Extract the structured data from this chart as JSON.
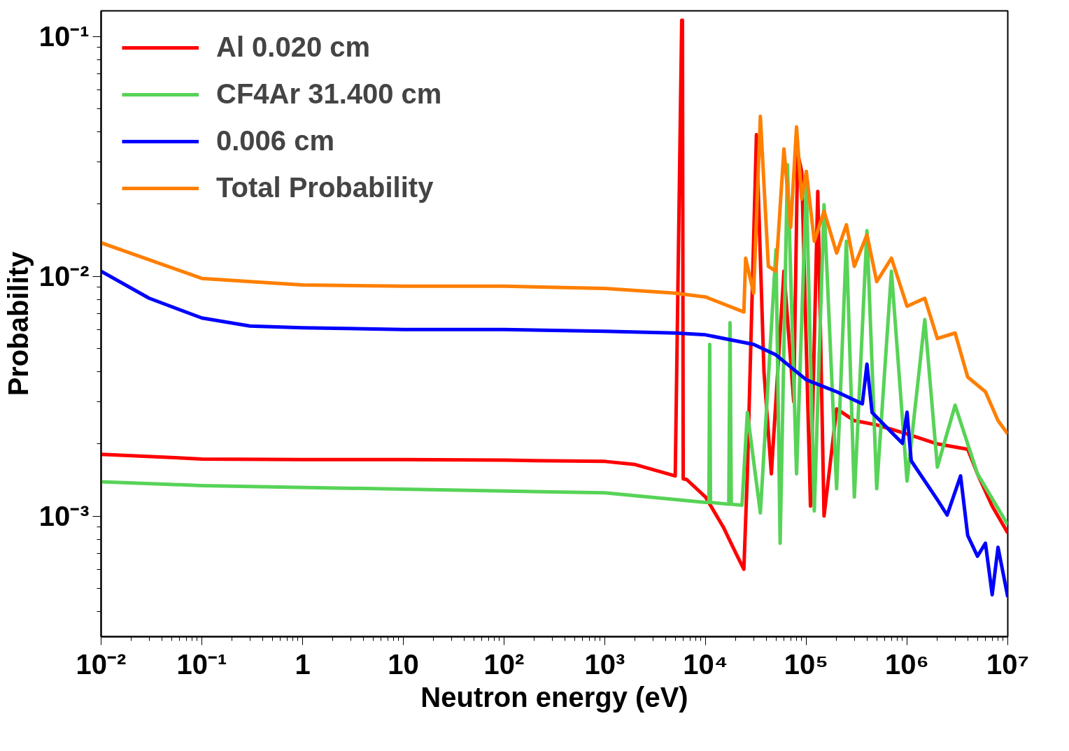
{
  "chart_data": {
    "type": "line",
    "xlabel": "Neutron energy (eV)",
    "ylabel": "Probability",
    "log": "xy",
    "grid": false,
    "legend": "top left",
    "line_style": "solid",
    "marker": "none",
    "xlim": [
      0.01,
      10000000
    ],
    "ylim": [
      0.000314,
      0.128
    ],
    "xticks": [
      {
        "value": 0.01,
        "label": "10⁻²"
      },
      {
        "value": 0.1,
        "label": "10⁻¹"
      },
      1,
      10,
      {
        "value": 100,
        "label": "10²"
      },
      {
        "value": 1000,
        "label": "10³"
      },
      {
        "value": 10000,
        "label": "10⁴"
      },
      {
        "value": 100000,
        "label": "10⁵"
      },
      {
        "value": 1000000,
        "label": "10⁶"
      },
      {
        "value": 10000000,
        "label": "10⁷"
      }
    ],
    "yticks": [
      {
        "value": 0.001,
        "label": "10⁻³"
      },
      {
        "value": 0.01,
        "label": "10⁻²"
      },
      {
        "value": 0.1,
        "label": "10⁻¹"
      }
    ],
    "series": [
      {
        "name": "Al 0.020 cm",
        "color": "#ff0000",
        "x": [
          0.01,
          0.1,
          1,
          10,
          100,
          1000,
          2000,
          5000,
          5800,
          5900,
          6000,
          6500,
          10000,
          15000,
          20000,
          24000,
          26000,
          32000,
          38000,
          45000,
          60000,
          75000,
          82000,
          90000,
          110000,
          130000,
          150000,
          200000,
          300000,
          500000,
          1000000,
          2000000,
          4000000,
          5000000,
          7000000,
          10000000
        ],
        "values": [
          0.00181,
          0.00173,
          0.00172,
          0.00172,
          0.00171,
          0.00169,
          0.00164,
          0.00147,
          0.117,
          0.117,
          0.00143,
          0.00142,
          0.0012,
          0.0009,
          0.0007,
          0.0006,
          0.0015,
          0.039,
          0.004,
          0.0015,
          0.0105,
          0.003,
          0.0326,
          0.0274,
          0.0011,
          0.0226,
          0.001,
          0.0028,
          0.0025,
          0.0024,
          0.0022,
          0.002,
          0.0019,
          0.0015,
          0.0011,
          0.00085
        ]
      },
      {
        "name": "CF4Ar 31.400 cm",
        "color": "#57d357",
        "x": [
          0.01,
          0.1,
          1000,
          10000,
          10800,
          11000,
          11200,
          17000,
          17500,
          18000,
          23000,
          26000,
          35000,
          50000,
          55000,
          65000,
          80000,
          100000,
          120000,
          150000,
          200000,
          250000,
          300000,
          400000,
          500000,
          700000,
          1000000,
          1500000,
          2000000,
          3000000,
          5000000,
          10000000
        ],
        "values": [
          0.00139,
          0.00134,
          0.00125,
          0.00114,
          0.00114,
          0.0052,
          0.00114,
          0.00112,
          0.0064,
          0.00112,
          0.00111,
          0.0027,
          0.00103,
          0.0129,
          0.00077,
          0.0292,
          0.0015,
          0.024,
          0.00105,
          0.0199,
          0.0013,
          0.014,
          0.0012,
          0.0155,
          0.0013,
          0.0105,
          0.0014,
          0.0066,
          0.0016,
          0.0029,
          0.0015,
          0.00092
        ]
      },
      {
        "name": "0.006 cm",
        "color": "#0000ff",
        "x": [
          0.01,
          0.03,
          0.1,
          0.3,
          1,
          10,
          100,
          1000,
          5000,
          10000,
          30000,
          50000,
          100000,
          200000,
          360000,
          400000,
          450000,
          900000,
          1000000,
          1100000,
          2000000,
          2500000,
          3400000,
          4000000,
          5000000,
          6000000,
          7000000,
          8000000,
          10000000
        ],
        "values": [
          0.0105,
          0.0081,
          0.0067,
          0.0062,
          0.0061,
          0.006,
          0.006,
          0.0059,
          0.0058,
          0.0057,
          0.0052,
          0.0047,
          0.0037,
          0.0033,
          0.00294,
          0.0043,
          0.0027,
          0.00201,
          0.00271,
          0.0017,
          0.00117,
          0.00101,
          0.00147,
          0.00083,
          0.00068,
          0.00077,
          0.00047,
          0.00074,
          0.00046
        ]
      },
      {
        "name": "Total Probability",
        "color": "#ff7f00",
        "x": [
          0.01,
          0.1,
          1,
          10,
          100,
          1000,
          5000,
          10000,
          24000,
          25000,
          30000,
          35000,
          42000,
          50000,
          60000,
          70000,
          80000,
          90000,
          100000,
          120000,
          150000,
          200000,
          250000,
          300000,
          400000,
          500000,
          700000,
          1000000,
          1500000,
          2000000,
          3000000,
          4000000,
          6000000,
          8000000,
          10000000
        ],
        "values": [
          0.0138,
          0.0098,
          0.0092,
          0.0091,
          0.0091,
          0.0089,
          0.0085,
          0.0082,
          0.0071,
          0.0119,
          0.0085,
          0.0465,
          0.011,
          0.0105,
          0.034,
          0.016,
          0.042,
          0.021,
          0.0274,
          0.014,
          0.0187,
          0.0125,
          0.0164,
          0.011,
          0.0149,
          0.0095,
          0.0119,
          0.0075,
          0.0081,
          0.0055,
          0.0058,
          0.0038,
          0.0033,
          0.0025,
          0.0022
        ]
      }
    ]
  }
}
